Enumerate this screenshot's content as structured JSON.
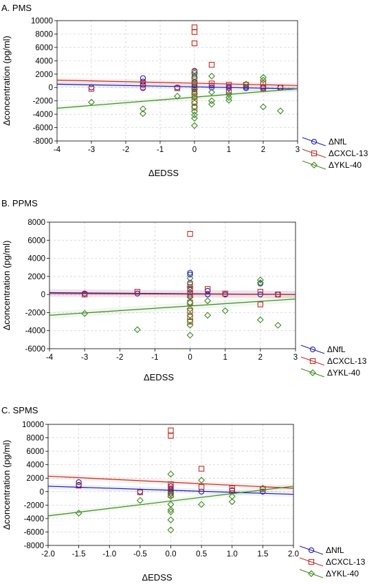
{
  "chart_data": [
    {
      "type": "scatter",
      "panel_label": "A. PMS",
      "xlabel": "ΔEDSS",
      "ylabel": "Δconcentration (pg/ml)",
      "xlim": [
        -4,
        3
      ],
      "ylim": [
        -8000,
        10000
      ],
      "xticks": [
        -4,
        -3,
        -2,
        -1,
        0,
        1,
        2,
        3
      ],
      "yticks": [
        -8000,
        -6000,
        -4000,
        -2000,
        0,
        2000,
        4000,
        6000,
        8000,
        10000
      ],
      "xtick_decimals": 0,
      "grid": true,
      "legend_position": "right",
      "series": [
        {
          "name": "ΔNfL",
          "color": "#1a1ab8",
          "marker": "circle",
          "points": [
            [
              -3,
              0
            ],
            [
              -1.5,
              1400
            ],
            [
              -1.5,
              900
            ],
            [
              -1.5,
              400
            ],
            [
              -1.5,
              -100
            ],
            [
              -0.5,
              0
            ],
            [
              0,
              2500
            ],
            [
              0,
              1600
            ],
            [
              0,
              800
            ],
            [
              0,
              300
            ],
            [
              0,
              0
            ],
            [
              0,
              -300
            ],
            [
              0.5,
              300
            ],
            [
              0.5,
              0
            ],
            [
              1,
              100
            ],
            [
              1,
              -100
            ],
            [
              1.5,
              100
            ],
            [
              1.5,
              -100
            ],
            [
              2,
              100
            ],
            [
              2,
              -100
            ],
            [
              2.5,
              0
            ]
          ],
          "fit": [
            [
              -4,
              500
            ],
            [
              3,
              -200
            ]
          ]
        },
        {
          "name": "ΔCXCL-13",
          "color": "#c8281e",
          "marker": "square",
          "points": [
            [
              -3,
              -200
            ],
            [
              -1.5,
              600
            ],
            [
              -1.5,
              100
            ],
            [
              -0.5,
              -100
            ],
            [
              0,
              9000
            ],
            [
              0,
              8300
            ],
            [
              0,
              6600
            ],
            [
              0,
              2300
            ],
            [
              0,
              1200
            ],
            [
              0,
              500
            ],
            [
              0,
              0
            ],
            [
              0,
              -600
            ],
            [
              0,
              -1300
            ],
            [
              0,
              -2100
            ],
            [
              0,
              -3000
            ],
            [
              0.5,
              3400
            ],
            [
              0.5,
              600
            ],
            [
              1,
              400
            ],
            [
              1,
              -500
            ],
            [
              1.5,
              400
            ],
            [
              2,
              600
            ],
            [
              2,
              -100
            ],
            [
              2.5,
              0
            ]
          ],
          "fit": [
            [
              -4,
              1100
            ],
            [
              3,
              300
            ]
          ]
        },
        {
          "name": "ΔYKL-40",
          "color": "#3a8a1e",
          "marker": "diamond",
          "points": [
            [
              -3,
              -2200
            ],
            [
              -1.5,
              -3200
            ],
            [
              -1.5,
              -3900
            ],
            [
              -0.5,
              -1300
            ],
            [
              0,
              2200
            ],
            [
              0,
              1500
            ],
            [
              0,
              700
            ],
            [
              0,
              -200
            ],
            [
              0,
              -900
            ],
            [
              0,
              -1500
            ],
            [
              0,
              -2300
            ],
            [
              0,
              -2900
            ],
            [
              0,
              -3600
            ],
            [
              0,
              -4100
            ],
            [
              0,
              -4600
            ],
            [
              0,
              -5700
            ],
            [
              0.5,
              1700
            ],
            [
              0.5,
              -700
            ],
            [
              0.5,
              -2000
            ],
            [
              0.5,
              -2500
            ],
            [
              1,
              -1000
            ],
            [
              1,
              -1500
            ],
            [
              1,
              -1900
            ],
            [
              1.5,
              500
            ],
            [
              2,
              1500
            ],
            [
              2,
              1100
            ],
            [
              2,
              -2900
            ],
            [
              2.5,
              -3500
            ]
          ],
          "fit": [
            [
              -4,
              -3100
            ],
            [
              3,
              -200
            ]
          ]
        }
      ]
    },
    {
      "type": "scatter",
      "panel_label": "B. PPMS",
      "xlabel": "ΔEDSS",
      "ylabel": "Δconcentration (pg/ml)",
      "xlim": [
        -4,
        3
      ],
      "ylim": [
        -6000,
        8000
      ],
      "xticks": [
        -4,
        -3,
        -2,
        -1,
        0,
        1,
        2,
        3
      ],
      "yticks": [
        -6000,
        -4000,
        -2000,
        0,
        2000,
        4000,
        6000,
        8000
      ],
      "xtick_decimals": 0,
      "grid": true,
      "legend_position": "right",
      "series": [
        {
          "name": "ΔNfL",
          "color": "#1a1ab8",
          "marker": "circle",
          "points": [
            [
              -3,
              100
            ],
            [
              -1.5,
              100
            ],
            [
              0,
              2400
            ],
            [
              0,
              2200
            ],
            [
              0,
              1300
            ],
            [
              0,
              500
            ],
            [
              0,
              200
            ],
            [
              0,
              -200
            ],
            [
              0.5,
              400
            ],
            [
              0.5,
              0
            ],
            [
              1,
              0
            ],
            [
              2,
              1200
            ],
            [
              2,
              0
            ],
            [
              2.5,
              0
            ]
          ],
          "fit": [
            [
              -4,
              200
            ],
            [
              3,
              0
            ]
          ]
        },
        {
          "name": "ΔCXCL-13",
          "color": "#c8281e",
          "marker": "square",
          "points": [
            [
              -3,
              0
            ],
            [
              -1.5,
              300
            ],
            [
              0,
              6700
            ],
            [
              0,
              1100
            ],
            [
              0,
              600
            ],
            [
              0,
              0
            ],
            [
              0,
              -900
            ],
            [
              0,
              -1800
            ],
            [
              0,
              -2500
            ],
            [
              0,
              -3000
            ],
            [
              0.5,
              600
            ],
            [
              1,
              100
            ],
            [
              2,
              -1100
            ],
            [
              2,
              300
            ],
            [
              2.5,
              0
            ]
          ],
          "fit": [
            [
              -4,
              100
            ],
            [
              3,
              0
            ]
          ]
        },
        {
          "name": "ΔYKL-40",
          "color": "#3a8a1e",
          "marker": "diamond",
          "points": [
            [
              -3,
              -2100
            ],
            [
              -1.5,
              -3900
            ],
            [
              0,
              1800
            ],
            [
              0,
              800
            ],
            [
              0,
              -300
            ],
            [
              0,
              -900
            ],
            [
              0,
              -1600
            ],
            [
              0,
              -2300
            ],
            [
              0,
              -2900
            ],
            [
              0,
              -3400
            ],
            [
              0,
              -4500
            ],
            [
              0.5,
              -700
            ],
            [
              0.5,
              -2300
            ],
            [
              1,
              -1800
            ],
            [
              2,
              1600
            ],
            [
              2,
              1300
            ],
            [
              2,
              -2800
            ],
            [
              2.5,
              -3400
            ]
          ],
          "fit": [
            [
              -4,
              -2300
            ],
            [
              3,
              -500
            ]
          ]
        }
      ]
    },
    {
      "type": "scatter",
      "panel_label": "C. SPMS",
      "xlabel": "ΔEDSS",
      "ylabel": "Δconcentration (pg/ml)",
      "xlim": [
        -2,
        2
      ],
      "ylim": [
        -8000,
        10000
      ],
      "xticks": [
        -2,
        -1.5,
        -1,
        -0.5,
        0,
        0.5,
        1,
        1.5,
        2
      ],
      "yticks": [
        -8000,
        -6000,
        -4000,
        -2000,
        0,
        2000,
        4000,
        6000,
        8000,
        10000
      ],
      "xtick_decimals": 1,
      "grid": true,
      "legend_position": "right",
      "series": [
        {
          "name": "ΔNfL",
          "color": "#1a1ab8",
          "marker": "circle",
          "points": [
            [
              -1.5,
              1400
            ],
            [
              -1.5,
              1000
            ],
            [
              -0.5,
              0
            ],
            [
              0,
              800
            ],
            [
              0,
              300
            ],
            [
              0,
              0
            ],
            [
              0,
              -300
            ],
            [
              0.5,
              0
            ],
            [
              1,
              200
            ],
            [
              1.5,
              0
            ]
          ],
          "fit": [
            [
              -2,
              800
            ],
            [
              2,
              -400
            ]
          ]
        },
        {
          "name": "ΔCXCL-13",
          "color": "#c8281e",
          "marker": "square",
          "points": [
            [
              -1.5,
              900
            ],
            [
              -0.5,
              -100
            ],
            [
              0,
              9100
            ],
            [
              0,
              8300
            ],
            [
              0,
              1100
            ],
            [
              0,
              500
            ],
            [
              0,
              0
            ],
            [
              0,
              -500
            ],
            [
              0.5,
              3400
            ],
            [
              0.5,
              700
            ],
            [
              1,
              500
            ],
            [
              1,
              100
            ],
            [
              1.5,
              400
            ]
          ],
          "fit": [
            [
              -2,
              2300
            ],
            [
              2,
              500
            ]
          ]
        },
        {
          "name": "ΔYKL-40",
          "color": "#3a8a1e",
          "marker": "diamond",
          "points": [
            [
              -1.5,
              -3200
            ],
            [
              -0.5,
              -1300
            ],
            [
              0,
              2600
            ],
            [
              0,
              -300
            ],
            [
              0,
              -700
            ],
            [
              0,
              -1900
            ],
            [
              0,
              -2700
            ],
            [
              0,
              -3000
            ],
            [
              0,
              -4200
            ],
            [
              0,
              -5700
            ],
            [
              0.5,
              1700
            ],
            [
              0.5,
              -1900
            ],
            [
              1,
              -700
            ],
            [
              1,
              -1500
            ],
            [
              1.5,
              500
            ]
          ],
          "fit": [
            [
              -2,
              -3600
            ],
            [
              2,
              800
            ]
          ]
        }
      ]
    }
  ]
}
